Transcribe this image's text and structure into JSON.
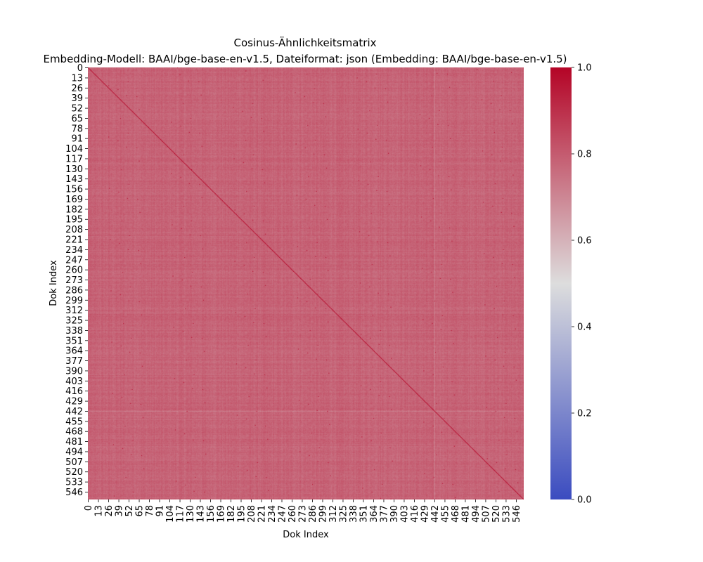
{
  "chart_data": {
    "type": "heatmap",
    "title_line1": "Cosinus-Ähnlichkeitsmatrix",
    "title_line2": "Embedding-Modell: BAAI/bge-base-en-v1.5, Dateiformat: json (Embedding: BAAI/bge-base-en-v1.5)",
    "xlabel": "Dok Index",
    "ylabel": "Dok Index",
    "n_docs": 556,
    "tick_labels": [
      "0",
      "13",
      "26",
      "39",
      "52",
      "65",
      "78",
      "91",
      "104",
      "117",
      "130",
      "143",
      "156",
      "169",
      "182",
      "195",
      "208",
      "221",
      "234",
      "247",
      "260",
      "273",
      "286",
      "299",
      "312",
      "325",
      "338",
      "351",
      "364",
      "377",
      "390",
      "403",
      "416",
      "429",
      "442",
      "455",
      "468",
      "481",
      "494",
      "507",
      "520",
      "533",
      "546"
    ],
    "colorbar_ticks": [
      "0.0",
      "0.2",
      "0.4",
      "0.6",
      "0.8",
      "1.0"
    ],
    "colorbar_range": [
      0.0,
      1.0
    ],
    "colormap": "coolwarm",
    "colormap_stops": [
      "#3b4cc0",
      "#dddddd",
      "#b40426"
    ],
    "value_summary": {
      "diagonal": 1.0,
      "typical_off_diagonal": 0.78,
      "min_off_diagonal_approx": 0.68,
      "max_off_diagonal_approx": 0.95,
      "lighter_row_column": 442
    },
    "grid": false,
    "legend": "colorbar-right"
  }
}
